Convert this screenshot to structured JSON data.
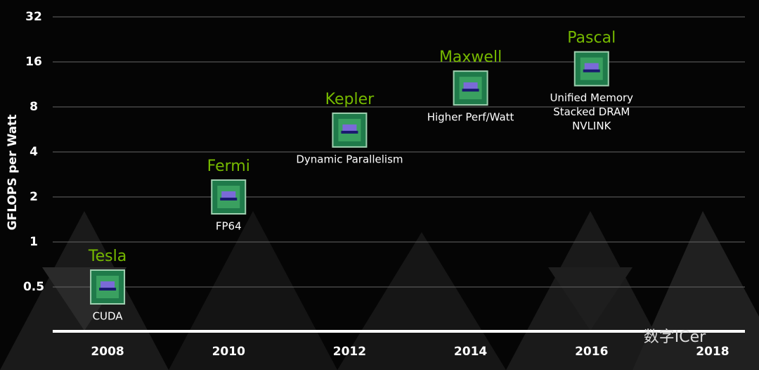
{
  "chart_data": {
    "type": "scatter",
    "y_label": "GFLOPS per Watt",
    "x": [
      2008,
      2010,
      2012,
      2014,
      2016
    ],
    "values": [
      0.5,
      2,
      5.6,
      10.7,
      14.4
    ],
    "point_labels": [
      "Tesla",
      "Fermi",
      "Kepler",
      "Maxwell",
      "Pascal"
    ],
    "annotations": [
      [
        "CUDA"
      ],
      [
        "FP64"
      ],
      [
        "Dynamic Parallelism"
      ],
      [
        "Higher Perf/Watt"
      ],
      [
        "Unified Memory",
        "Stacked DRAM",
        "NVLINK"
      ]
    ],
    "label_color": "#76b900",
    "xlim": [
      2007,
      2019
    ],
    "xticks": [
      2008,
      2010,
      2012,
      2014,
      2016,
      2018
    ],
    "ylim": [
      0.25,
      32
    ],
    "yticks": [
      0.5,
      1,
      2,
      4,
      8,
      16,
      32
    ],
    "log_scale": true,
    "grid": true,
    "watermark": "数字ICer"
  }
}
